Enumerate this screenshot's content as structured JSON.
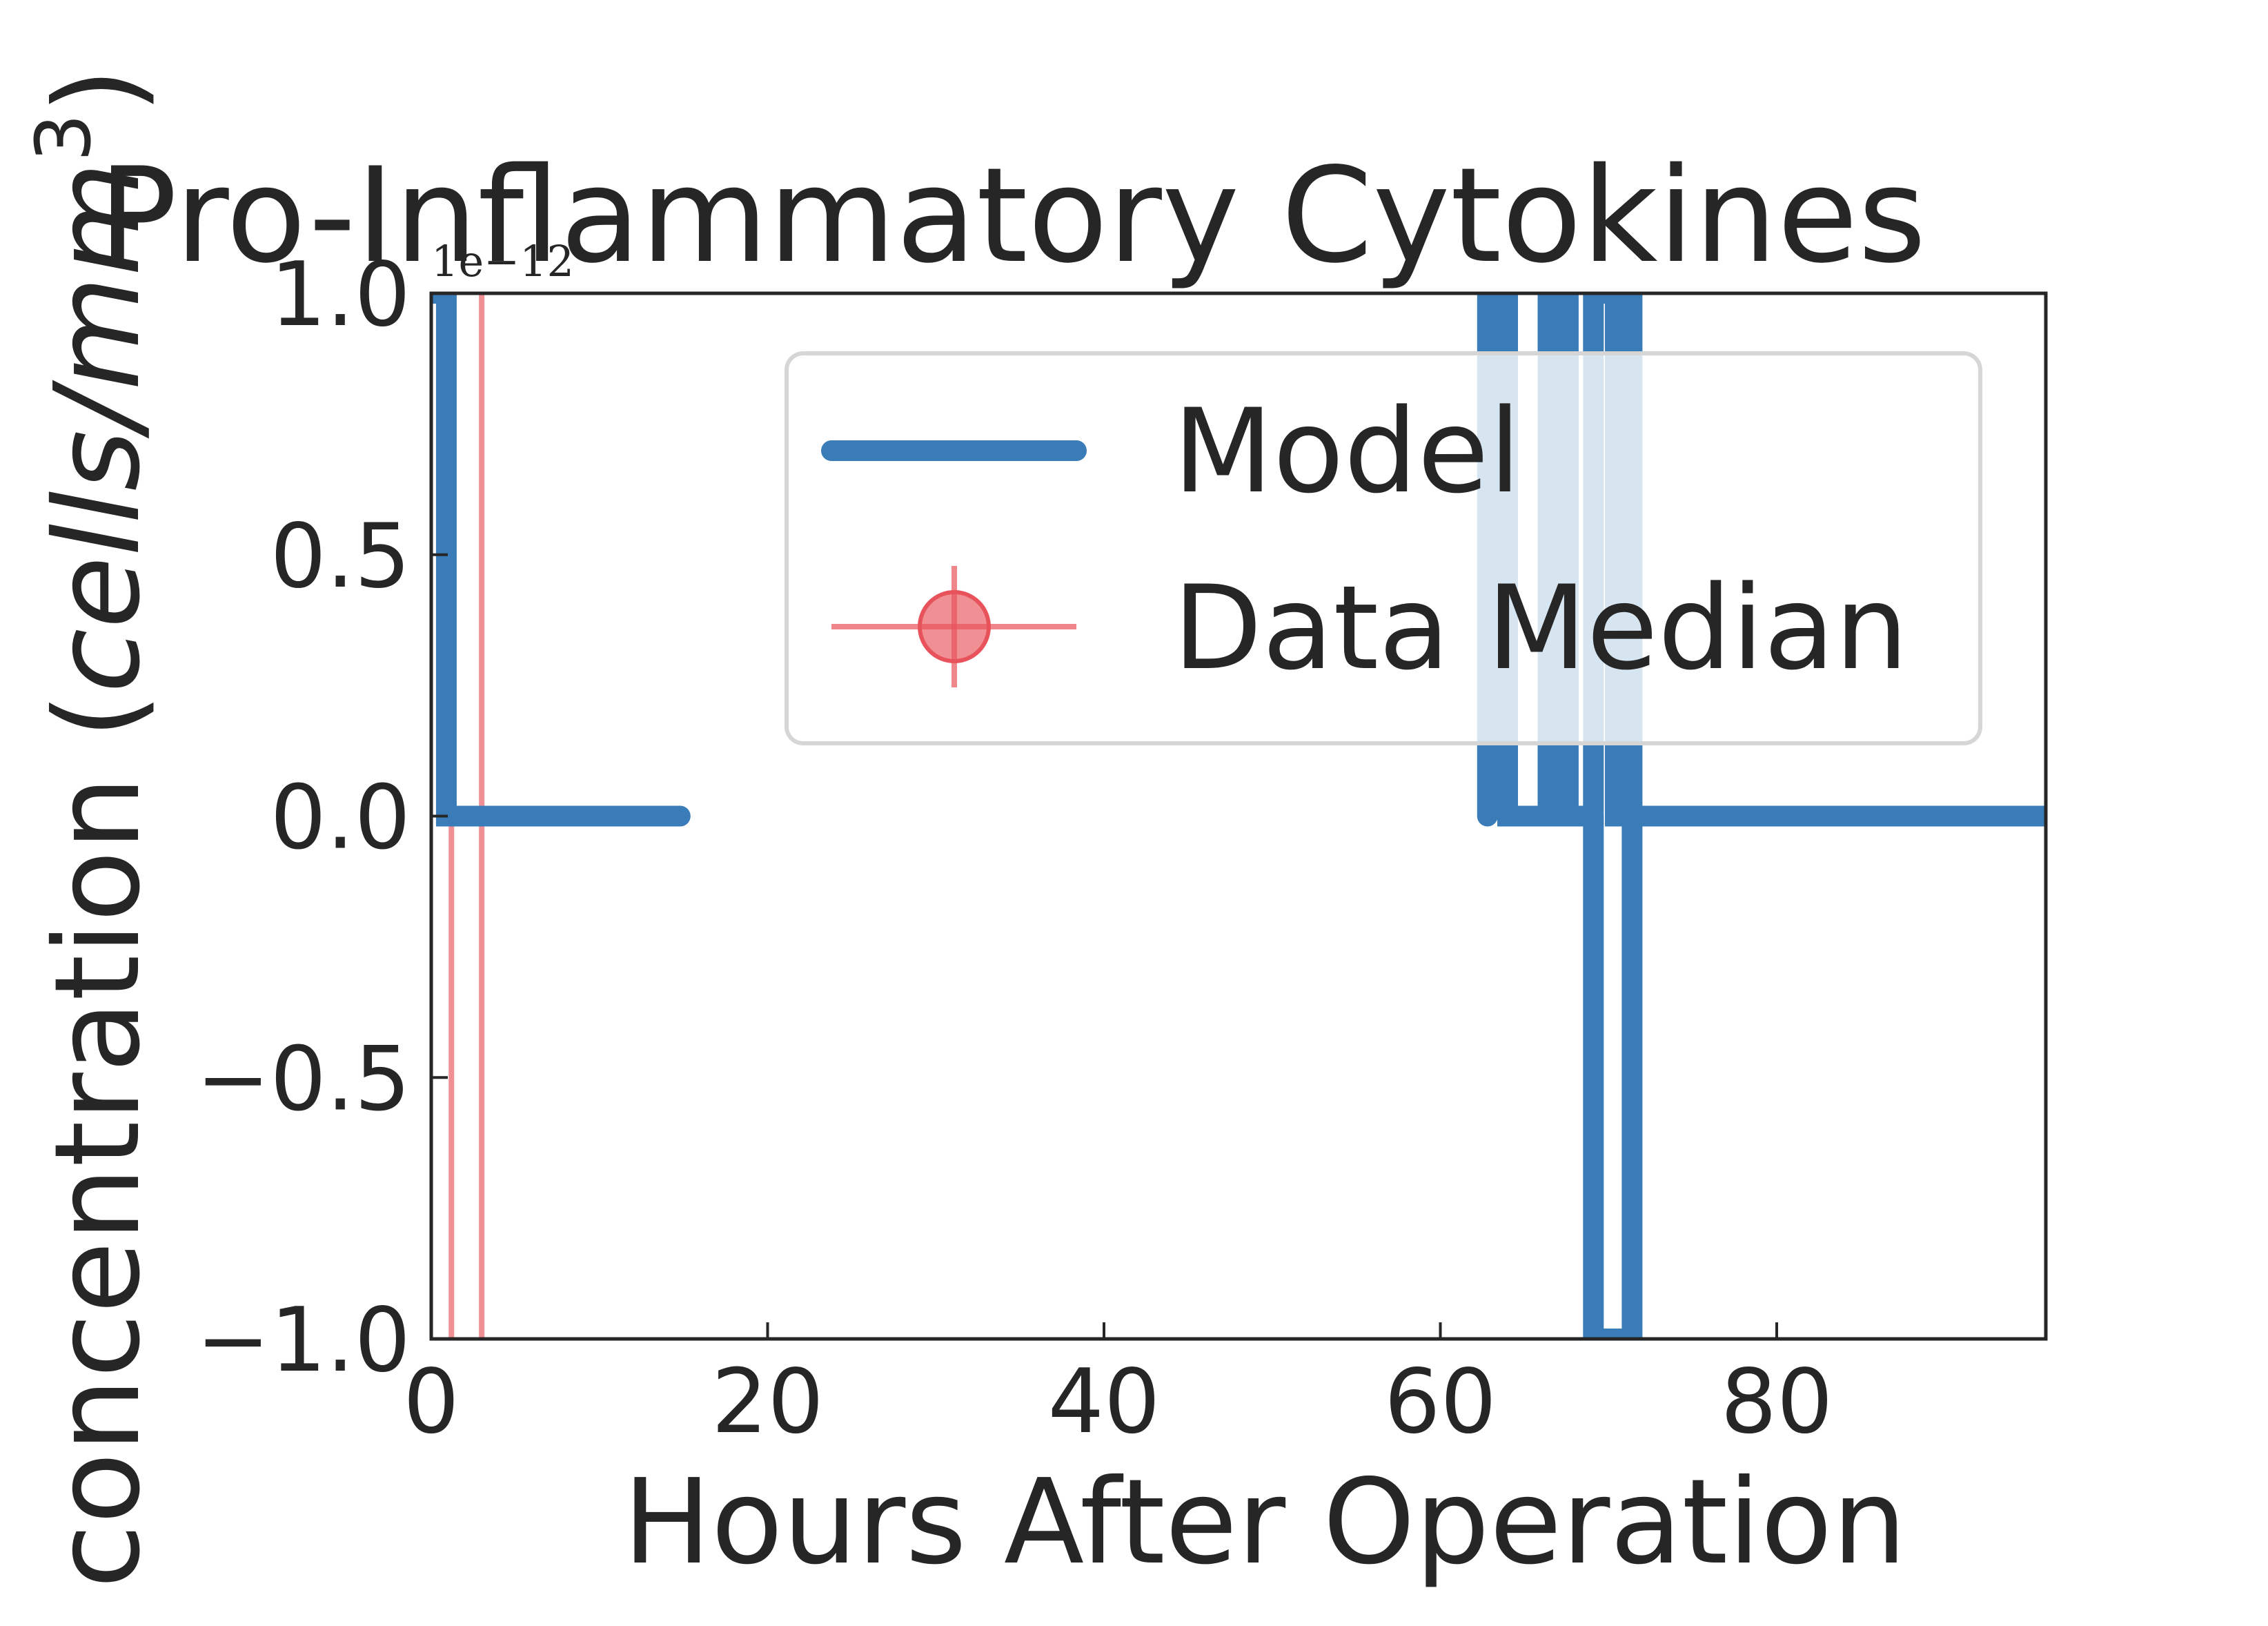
{
  "chart_data": {
    "type": "line",
    "title": "Pro-Inflammatory Cytokines",
    "xlabel": "Hours After Operation",
    "ylabel": "concentration (cells/mm³)",
    "ylabel_parts": {
      "prefix": "concentration (",
      "unit_italic": "cells/mm",
      "exponent": "3",
      "suffix": ")"
    },
    "y_offset_text": "1e−12",
    "xlim": [
      0,
      96
    ],
    "ylim": [
      -1.0,
      1.0
    ],
    "x_ticks": [
      0,
      20,
      40,
      60,
      80
    ],
    "x_tick_labels": [
      "0",
      "20",
      "40",
      "60",
      "80"
    ],
    "y_ticks": [
      -1.0,
      -0.5,
      0.0,
      0.5,
      1.0
    ],
    "y_tick_labels": [
      "−1.0",
      "−0.5",
      "0.0",
      "0.5",
      "1.0"
    ],
    "grid": false,
    "legend_placement": "upper-right",
    "legend": [
      "Model",
      "Data Median"
    ],
    "series": [
      {
        "name": "Model",
        "color": "#3a7cb8",
        "style": "thick-line",
        "segments": [
          {
            "x": [
              0,
              0.9,
              0.9,
              14.8
            ],
            "y": [
              1.0,
              1.0,
              0.0,
              0.0
            ]
          },
          {
            "x": [
              62.8,
              62.8,
              64.0,
              64.0,
              66.4,
              66.4,
              67.6,
              67.6
            ],
            "y": [
              0.0,
              1.0,
              1.0,
              0.0,
              0.0,
              1.0,
              1.0,
              0.0
            ]
          },
          {
            "x": [
              67.6,
              67.6,
              69.1,
              69.1,
              70.4,
              70.4,
              71.4,
              71.4
            ],
            "y": [
              1.0,
              0.0,
              0.0,
              1.0,
              1.0,
              0.0,
              0.0,
              1.0
            ]
          },
          {
            "x": [
              69.1,
              69.1,
              71.4,
              71.4
            ],
            "y": [
              0.0,
              -1.0,
              -1.0,
              0.0
            ]
          },
          {
            "x": [
              71.4,
              96
            ],
            "y": [
              0.0,
              0.0
            ]
          }
        ]
      },
      {
        "name": "Data Median",
        "color": "#e8535b",
        "style": "errorbar",
        "vertical_lines_x": [
          1.2,
          3.0
        ]
      }
    ]
  }
}
